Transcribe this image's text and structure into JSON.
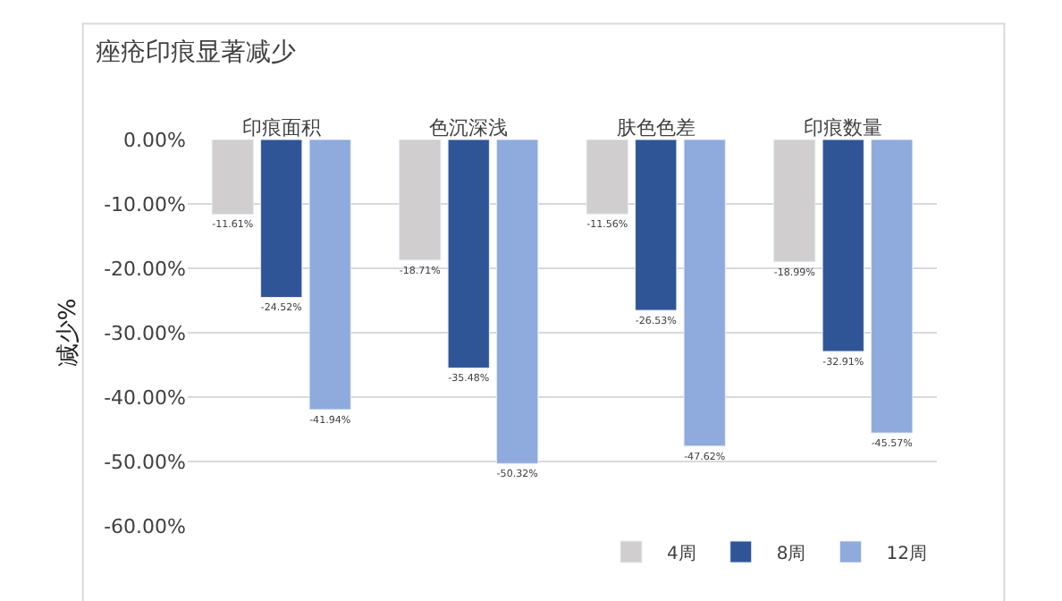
{
  "chart_data": {
    "type": "bar",
    "title": "痤疮印痕显著减少",
    "ylabel": "减少%",
    "categories": [
      "印痕面积",
      "色沉深浅",
      "肤色色差",
      "印痕数量"
    ],
    "series": [
      {
        "name": "4周",
        "color": "#d0cece",
        "values": [
          -11.61,
          -18.71,
          -11.56,
          -18.99
        ],
        "value_labels": [
          "-11.61%",
          "-18.71%",
          "-11.56%",
          "-18.99%"
        ]
      },
      {
        "name": "8周",
        "color": "#2f5597",
        "values": [
          -24.52,
          -35.48,
          -26.53,
          -32.91
        ],
        "value_labels": [
          "-24.52%",
          "-35.48%",
          "-26.53%",
          "-32.91%"
        ]
      },
      {
        "name": "12周",
        "color": "#8faadc",
        "values": [
          -41.94,
          -50.32,
          -47.62,
          -45.57
        ],
        "value_labels": [
          "-41.94%",
          "-50.32%",
          "-47.62%",
          "-45.57%"
        ]
      }
    ],
    "ylim": [
      -60,
      0
    ],
    "yticks": [
      {
        "value": 0,
        "label": "0.00%"
      },
      {
        "value": -10,
        "label": "-10.00%"
      },
      {
        "value": -20,
        "label": "-20.00%"
      },
      {
        "value": -30,
        "label": "-30.00%"
      },
      {
        "value": -40,
        "label": "-40.00%"
      },
      {
        "value": -50,
        "label": "-50.00%"
      },
      {
        "value": -60,
        "label": "-60.00%"
      }
    ],
    "grid": "y",
    "legend": "bottom right"
  }
}
